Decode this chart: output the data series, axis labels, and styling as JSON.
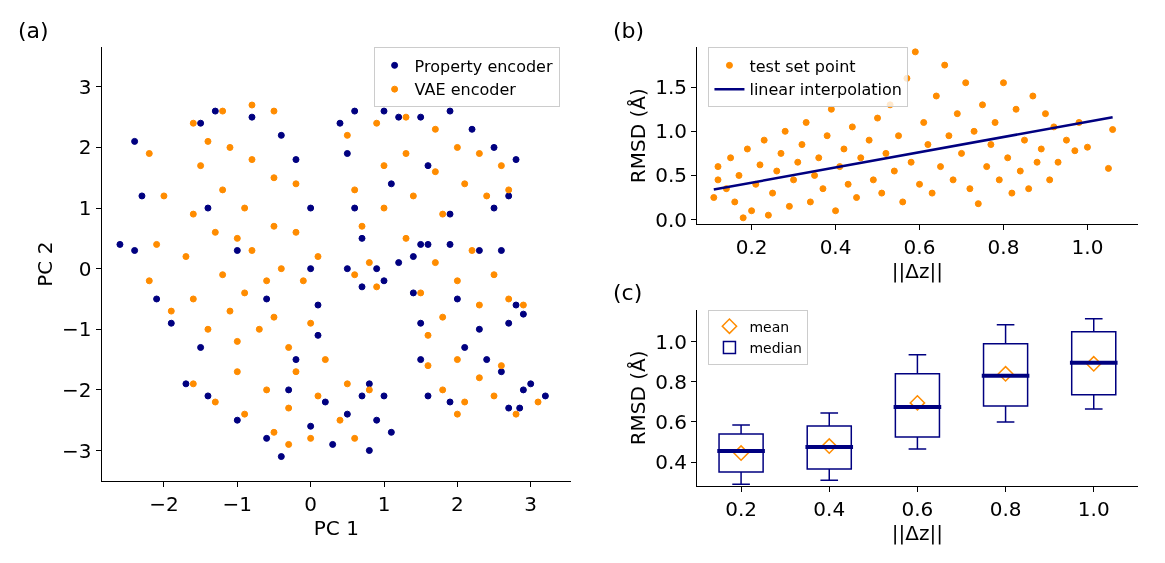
{
  "chart_data": [
    {
      "type": "scatter",
      "title": "(a)",
      "xlabel": "PC 1",
      "ylabel": "PC 2",
      "xlim": [
        -2.85,
        3.55
      ],
      "ylim": [
        -3.5,
        3.65
      ],
      "xticks": [
        {
          "value": -2,
          "label": "−2"
        },
        {
          "value": -1,
          "label": "−1"
        },
        0,
        1,
        2,
        3
      ],
      "yticks": [
        {
          "value": -3,
          "label": "−3"
        },
        {
          "value": -2,
          "label": "−2"
        },
        {
          "value": -1,
          "label": "−1"
        },
        0,
        1,
        2,
        3
      ],
      "legend": "top right",
      "marker": "circle",
      "series": [
        {
          "name": "Property encoder",
          "color": "#000080",
          "x": [
            -2.6,
            -2.4,
            -2.4,
            -2.3,
            -2.1,
            -1.9,
            -1.5,
            -1.5,
            -1.3,
            -0.8,
            -0.4,
            -0.2,
            0.0,
            0.0,
            0.1,
            0.1,
            -0.2,
            -1.0,
            -1.4,
            -0.6,
            -1.7,
            -1.4,
            -1.0,
            -0.4,
            -0.6,
            0.0,
            0.3,
            0.5,
            0.7,
            0.8,
            1.0,
            1.1,
            0.9,
            0.8,
            0.2,
            -0.3,
            0.5,
            0.4,
            0.6,
            0.6,
            0.7,
            1.0,
            1.2,
            1.5,
            1.9,
            2.2,
            2.5,
            2.8,
            2.7,
            2.5,
            1.9,
            1.5,
            1.1,
            1.6,
            0.5,
            0.7,
            0.9,
            1.0,
            1.2,
            1.4,
            1.4,
            1.6,
            1.9,
            2.3,
            2.6,
            2.8,
            2.9,
            2.7,
            2.3,
            1.5,
            2.0,
            1.5,
            1.6,
            1.9,
            2.1,
            2.4,
            2.6,
            2.7,
            2.9,
            3.0,
            3.2,
            2.85
          ],
          "values": [
            0.4,
            2.1,
            0.3,
            1.2,
            -0.5,
            -0.9,
            -1.3,
            2.4,
            2.6,
            2.5,
            2.2,
            1.8,
            1.0,
            0.0,
            -0.6,
            -1.1,
            -1.5,
            0.3,
            1.0,
            -0.5,
            -1.9,
            -2.1,
            -2.5,
            -3.1,
            -2.8,
            -2.6,
            -2.9,
            -2.4,
            -2.1,
            -1.9,
            -2.1,
            -2.7,
            -2.5,
            -3.0,
            -2.2,
            -2.0,
            1.9,
            2.4,
            2.6,
            1.0,
            0.5,
            2.6,
            2.5,
            2.5,
            2.6,
            2.3,
            2.0,
            1.8,
            1.2,
            1.0,
            0.9,
            0.4,
            1.4,
            1.7,
            0.0,
            -0.3,
            0.0,
            -0.2,
            0.1,
            0.2,
            -0.4,
            0.4,
            0.4,
            0.3,
            0.3,
            -0.6,
            -0.75,
            -0.9,
            -1.0,
            -0.9,
            -0.5,
            -1.5,
            -2.1,
            -2.2,
            -1.3,
            -1.5,
            -1.7,
            -2.3,
            -2.0,
            -1.9,
            -2.1,
            -2.3
          ]
        },
        {
          "name": "VAE encoder",
          "color": "#ff8c00",
          "x": [
            -2.2,
            -2.0,
            -2.1,
            -2.2,
            -1.9,
            -1.6,
            -1.5,
            -1.6,
            -1.7,
            -1.6,
            -1.4,
            -1.2,
            -1.1,
            -1.2,
            -1.3,
            -1.2,
            -1.1,
            -1.0,
            -0.8,
            -0.8,
            -0.9,
            -0.8,
            -0.9,
            -0.7,
            -0.5,
            -0.5,
            -0.5,
            -0.4,
            -0.5,
            -0.3,
            -0.2,
            -0.2,
            -0.1,
            0.0,
            0.1,
            -1.4,
            -1.0,
            -0.6,
            -1.6,
            -1.3,
            -1.0,
            -0.9,
            -0.6,
            -0.5,
            -0.3,
            -0.2,
            0.0,
            0.1,
            0.2,
            0.4,
            0.5,
            0.8,
            -0.3,
            0.6,
            0.5,
            0.6,
            0.7,
            0.9,
            1.0,
            1.0,
            1.3,
            1.3,
            1.4,
            1.3,
            1.7,
            1.7,
            1.8,
            2.0,
            2.1,
            2.3,
            2.4,
            2.6,
            2.7,
            0.6,
            0.8,
            0.9,
            1.5,
            1.7,
            1.8,
            2.0,
            2.2,
            2.3,
            2.5,
            2.7,
            2.9,
            1.6,
            1.6,
            1.8,
            2.0,
            2.1,
            2.3,
            2.5,
            2.6,
            2.8,
            3.1,
            2.0
          ],
          "values": [
            1.9,
            1.2,
            0.4,
            -0.2,
            -0.7,
            2.4,
            1.7,
            0.9,
            0.2,
            -0.5,
            -1.0,
            2.6,
            2.0,
            1.3,
            0.6,
            -0.1,
            -0.7,
            -1.2,
            2.7,
            1.8,
            1.0,
            0.3,
            -0.4,
            -1.0,
            2.6,
            1.5,
            0.7,
            0.0,
            -0.8,
            -1.3,
            1.4,
            0.6,
            -0.2,
            -0.9,
            0.2,
            2.1,
            0.5,
            -0.2,
            -1.9,
            -2.2,
            -1.7,
            -2.4,
            -2.0,
            -2.7,
            -2.3,
            -1.7,
            -2.8,
            -2.1,
            -1.5,
            -2.5,
            -1.9,
            -2.0,
            -2.9,
            -2.8,
            2.2,
            1.3,
            0.7,
            2.4,
            1.7,
            1.0,
            2.5,
            1.9,
            1.2,
            0.5,
            2.3,
            1.6,
            0.9,
            2.0,
            1.4,
            1.9,
            1.2,
            1.7,
            1.3,
            -0.1,
            0.1,
            -0.3,
            -0.4,
            0.1,
            -0.8,
            -0.2,
            0.3,
            -0.6,
            -0.1,
            -0.5,
            -0.6,
            -1.1,
            -1.6,
            -2.0,
            -1.5,
            -2.2,
            -1.8,
            -2.1,
            -1.6,
            -2.4,
            -2.2,
            -2.4
          ]
        }
      ]
    },
    {
      "type": "scatter",
      "title": "(b)",
      "xlabel": "||Δz||",
      "ylabel": "RMSD (Å)",
      "xlim": [
        0.07,
        1.12
      ],
      "ylim": [
        -0.05,
        1.95
      ],
      "xticks": [
        0.2,
        0.4,
        0.6,
        0.8,
        {
          "value": 1.0,
          "label": "1.0"
        }
      ],
      "yticks": [
        {
          "value": 0,
          "label": "0.0"
        },
        0.5,
        {
          "value": 1.0,
          "label": "1.0"
        },
        1.5
      ],
      "legend": "top left",
      "marker": "circle",
      "series": [
        {
          "name": "test set point",
          "color": "#ff8c00",
          "x": [
            0.11,
            0.12,
            0.12,
            0.14,
            0.15,
            0.16,
            0.17,
            0.18,
            0.19,
            0.2,
            0.21,
            0.22,
            0.23,
            0.24,
            0.25,
            0.26,
            0.27,
            0.28,
            0.29,
            0.3,
            0.31,
            0.32,
            0.33,
            0.34,
            0.35,
            0.36,
            0.37,
            0.38,
            0.39,
            0.4,
            0.41,
            0.42,
            0.43,
            0.44,
            0.45,
            0.46,
            0.47,
            0.48,
            0.49,
            0.5,
            0.51,
            0.52,
            0.53,
            0.54,
            0.55,
            0.56,
            0.57,
            0.58,
            0.59,
            0.6,
            0.61,
            0.62,
            0.63,
            0.64,
            0.65,
            0.66,
            0.67,
            0.68,
            0.69,
            0.7,
            0.71,
            0.72,
            0.73,
            0.74,
            0.75,
            0.76,
            0.77,
            0.78,
            0.79,
            0.8,
            0.81,
            0.82,
            0.83,
            0.84,
            0.85,
            0.86,
            0.87,
            0.88,
            0.89,
            0.9,
            0.91,
            0.92,
            0.93,
            0.95,
            0.97,
            0.98,
            1.0,
            1.05,
            1.06
          ],
          "values": [
            0.25,
            0.45,
            0.6,
            0.35,
            0.7,
            0.2,
            0.5,
            0.02,
            0.8,
            0.1,
            0.4,
            0.62,
            0.9,
            0.05,
            0.3,
            0.55,
            0.75,
            1.0,
            0.15,
            0.45,
            0.65,
            0.85,
            1.1,
            0.2,
            0.5,
            0.7,
            0.35,
            0.95,
            1.25,
            0.1,
            0.6,
            0.8,
            0.4,
            1.05,
            0.25,
            0.7,
            null,
            0.9,
            0.45,
            1.15,
            0.3,
            0.75,
            1.3,
            0.55,
            0.95,
            0.2,
            1.6,
            0.65,
            1.9,
            0.4,
            1.1,
            0.85,
            0.3,
            1.4,
            0.6,
            1.75,
            0.95,
            0.45,
            1.2,
            0.75,
            1.55,
            0.35,
            1.0,
            0.18,
            1.3,
            0.6,
            0.85,
            1.1,
            0.45,
            1.55,
            0.7,
            0.3,
            1.25,
            0.55,
            0.9,
            0.35,
            1.4,
            0.65,
            0.8,
            1.2,
            0.45,
            1.05,
            0.65,
            0.9,
            0.78,
            1.1,
            0.82,
            0.58,
            1.02
          ]
        },
        {
          "name": "linear interpolation",
          "type": "line",
          "color": "#000080",
          "marker": "none",
          "x": [
            0.11,
            1.06
          ],
          "values": [
            0.34,
            1.16
          ]
        }
      ]
    },
    {
      "type": "box",
      "title": "(c)",
      "xlabel": "||Δz||",
      "ylabel": "RMSD (Å)",
      "categories": [
        "0.2",
        "0.4",
        "0.6",
        "0.8",
        "1.0"
      ],
      "ylim": [
        0.28,
        1.16
      ],
      "yticks": [
        0.4,
        0.6,
        0.8,
        {
          "value": 1.0,
          "label": "1.0"
        }
      ],
      "legend": "top left",
      "series": [
        {
          "name": "median",
          "type": "box",
          "color": "#000080",
          "boxes": [
            {
              "low": 0.29,
              "q1": 0.35,
              "median": 0.455,
              "q3": 0.54,
              "high": 0.585
            },
            {
              "low": 0.31,
              "q1": 0.365,
              "median": 0.475,
              "q3": 0.58,
              "high": 0.645
            },
            {
              "low": 0.465,
              "q1": 0.525,
              "median": 0.675,
              "q3": 0.84,
              "high": 0.935
            },
            {
              "low": 0.6,
              "q1": 0.68,
              "median": 0.83,
              "q3": 0.99,
              "high": 1.085
            },
            {
              "low": 0.665,
              "q1": 0.735,
              "median": 0.895,
              "q3": 1.05,
              "high": 1.115
            }
          ]
        },
        {
          "name": "mean",
          "type": "scatter",
          "color": "#ff8c00",
          "marker": "diamond",
          "values": [
            0.445,
            0.48,
            0.695,
            0.84,
            0.89
          ]
        }
      ]
    }
  ]
}
